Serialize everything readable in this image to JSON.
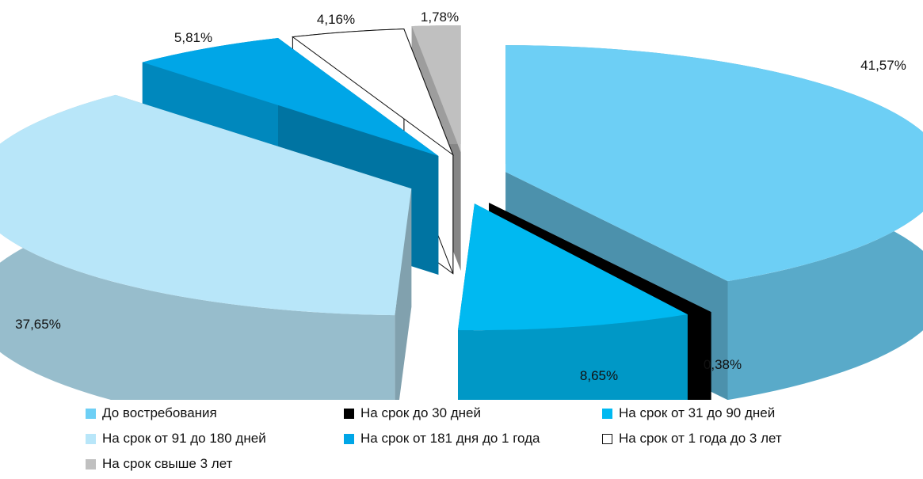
{
  "chart_data": {
    "type": "pie",
    "variant": "exploded-3d",
    "title": "",
    "slices": [
      {
        "label": "До востребования",
        "value": 41.57,
        "value_label": "41,57%",
        "color": "#6dcff5"
      },
      {
        "label": "На срок до 30 дней",
        "value": 0.38,
        "value_label": "0,38%",
        "color": "#000000"
      },
      {
        "label": "На срок от 31 до 90 дней",
        "value": 8.65,
        "value_label": "8,65%",
        "color": "#00b9f1"
      },
      {
        "label": "На срок от 91 до 180 дней",
        "value": 37.65,
        "value_label": "37,65%",
        "color": "#b8e6f9"
      },
      {
        "label": "На срок от 181 дня до 1 года",
        "value": 5.81,
        "value_label": "5,81%",
        "color": "#00a6e7"
      },
      {
        "label": "На срок от 1 года до 3 лет",
        "value": 4.16,
        "value_label": "4,16%",
        "color": "#ffffff"
      },
      {
        "label": "На срок свыше 3 лет",
        "value": 1.78,
        "value_label": "1,78%",
        "color": "#c0c0c0"
      }
    ],
    "legend_position": "bottom"
  }
}
